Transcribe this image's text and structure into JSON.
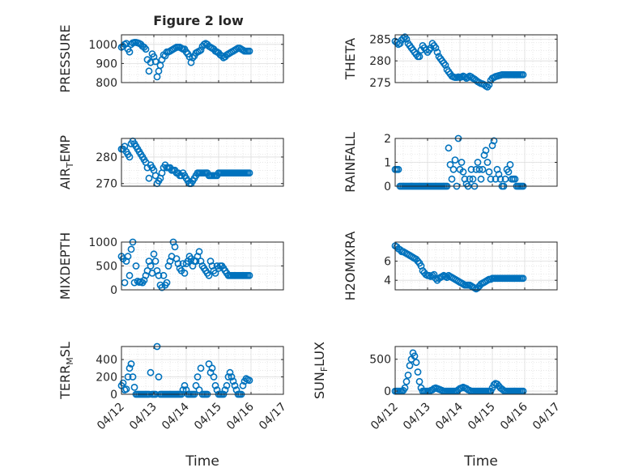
{
  "figure": {
    "title": "Figure 2 low"
  },
  "colors": {
    "marker": "#0072BD",
    "axis": "#262626",
    "grid": "#dedede"
  },
  "x_axis": {
    "label": "Time",
    "ticks": [
      "04/12",
      "04/13",
      "04/14",
      "04/15",
      "04/16",
      "04/17"
    ],
    "range_days": [
      0,
      5
    ]
  },
  "chart_data": [
    {
      "id": "pressure",
      "type": "scatter",
      "title": "Figure 2 low",
      "ylabel": "PRESSURE",
      "ylim": [
        800,
        1050
      ],
      "yticks": [
        800,
        900,
        1000
      ],
      "grid": true,
      "marker": "open-circle",
      "x_unit": "days since 04/12",
      "x": [
        0.0,
        0.05,
        0.1,
        0.15,
        0.2,
        0.25,
        0.3,
        0.35,
        0.4,
        0.45,
        0.5,
        0.55,
        0.6,
        0.65,
        0.7,
        0.75,
        0.8,
        0.85,
        0.9,
        0.95,
        1.0,
        1.05,
        1.1,
        1.15,
        1.2,
        1.25,
        1.3,
        1.35,
        1.4,
        1.45,
        1.5,
        1.55,
        1.6,
        1.65,
        1.7,
        1.75,
        1.8,
        1.85,
        1.9,
        1.95,
        2.0,
        2.05,
        2.1,
        2.15,
        2.2,
        2.25,
        2.3,
        2.35,
        2.4,
        2.45,
        2.5,
        2.55,
        2.6,
        2.65,
        2.7,
        2.75,
        2.8,
        2.85,
        2.9,
        2.95,
        3.0,
        3.05,
        3.1,
        3.15,
        3.2,
        3.25,
        3.3,
        3.35,
        3.4,
        3.45,
        3.5,
        3.55,
        3.6,
        3.65,
        3.7,
        3.75,
        3.8,
        3.85,
        3.9,
        3.95
      ],
      "y": [
        985,
        990,
        1000,
        1005,
        975,
        960,
        1000,
        1008,
        1010,
        1010,
        1008,
        1005,
        1000,
        990,
        985,
        975,
        920,
        860,
        905,
        950,
        935,
        910,
        830,
        860,
        890,
        920,
        945,
        940,
        960,
        960,
        965,
        970,
        975,
        980,
        985,
        985,
        985,
        980,
        975,
        975,
        960,
        950,
        935,
        905,
        930,
        940,
        955,
        960,
        965,
        970,
        990,
        1000,
        1005,
        1000,
        990,
        985,
        980,
        975,
        965,
        960,
        955,
        945,
        940,
        930,
        935,
        945,
        950,
        955,
        960,
        965,
        970,
        975,
        980,
        980,
        975,
        970,
        965,
        965,
        965,
        965
      ]
    },
    {
      "id": "theta",
      "type": "scatter",
      "ylabel": "THETA",
      "ylim": [
        275,
        286
      ],
      "yticks": [
        275,
        280,
        285
      ],
      "grid": true,
      "marker": "open-circle",
      "x_unit": "days since 04/12",
      "x": [
        0.0,
        0.05,
        0.1,
        0.15,
        0.2,
        0.25,
        0.3,
        0.35,
        0.4,
        0.45,
        0.5,
        0.55,
        0.6,
        0.65,
        0.7,
        0.75,
        0.8,
        0.85,
        0.9,
        0.95,
        1.0,
        1.05,
        1.1,
        1.15,
        1.2,
        1.25,
        1.3,
        1.35,
        1.4,
        1.45,
        1.5,
        1.55,
        1.6,
        1.65,
        1.7,
        1.75,
        1.8,
        1.85,
        1.9,
        1.95,
        2.0,
        2.05,
        2.1,
        2.15,
        2.2,
        2.25,
        2.3,
        2.35,
        2.4,
        2.45,
        2.5,
        2.55,
        2.6,
        2.65,
        2.7,
        2.75,
        2.8,
        2.85,
        2.9,
        2.95,
        3.0,
        3.05,
        3.1,
        3.15,
        3.2,
        3.25,
        3.3,
        3.35,
        3.4,
        3.45,
        3.5,
        3.55,
        3.6,
        3.65,
        3.7,
        3.75,
        3.8,
        3.85,
        3.9,
        3.95
      ],
      "y": [
        284.5,
        284.2,
        283.8,
        284.0,
        284.8,
        285.2,
        285.5,
        285.0,
        284.0,
        283.5,
        283.0,
        282.5,
        282.0,
        281.5,
        281.0,
        281.0,
        282.5,
        283.5,
        283.0,
        282.5,
        282.0,
        282.5,
        283.0,
        284.0,
        283.5,
        283.0,
        282.0,
        281.0,
        280.5,
        280.0,
        279.5,
        279.0,
        278.0,
        277.5,
        277.0,
        276.5,
        276.3,
        276.2,
        276.2,
        276.3,
        276.2,
        276.3,
        276.5,
        276.3,
        276.0,
        276.2,
        276.5,
        276.3,
        276.0,
        275.8,
        275.5,
        275.2,
        275.0,
        274.8,
        274.7,
        274.5,
        274.2,
        274.0,
        274.5,
        275.5,
        276.0,
        276.2,
        276.4,
        276.5,
        276.6,
        276.7,
        276.8,
        276.8,
        276.8,
        276.8,
        276.8,
        276.8,
        276.8,
        276.8,
        276.8,
        276.8,
        276.8,
        276.8,
        276.8,
        276.8
      ]
    },
    {
      "id": "air-temp",
      "type": "scatter",
      "ylabel": "AIR_TEMP",
      "ylim": [
        269,
        287
      ],
      "yticks": [
        270,
        280
      ],
      "grid": true,
      "marker": "open-circle",
      "x_unit": "days since 04/12",
      "x": [
        0.0,
        0.05,
        0.1,
        0.15,
        0.2,
        0.25,
        0.3,
        0.35,
        0.4,
        0.45,
        0.5,
        0.55,
        0.6,
        0.65,
        0.7,
        0.75,
        0.8,
        0.85,
        0.9,
        0.95,
        1.0,
        1.05,
        1.1,
        1.15,
        1.2,
        1.25,
        1.3,
        1.35,
        1.4,
        1.45,
        1.5,
        1.55,
        1.6,
        1.65,
        1.7,
        1.75,
        1.8,
        1.85,
        1.9,
        1.95,
        2.0,
        2.05,
        2.1,
        2.15,
        2.2,
        2.25,
        2.3,
        2.35,
        2.4,
        2.45,
        2.5,
        2.55,
        2.6,
        2.65,
        2.7,
        2.75,
        2.8,
        2.85,
        2.9,
        2.95,
        3.0,
        3.05,
        3.1,
        3.15,
        3.2,
        3.25,
        3.3,
        3.35,
        3.4,
        3.45,
        3.5,
        3.55,
        3.6,
        3.65,
        3.7,
        3.75,
        3.8,
        3.85,
        3.9,
        3.95
      ],
      "y": [
        283,
        283,
        284,
        282,
        281,
        280,
        285,
        286,
        285,
        284,
        283,
        282,
        281,
        280,
        279,
        278,
        276,
        272,
        277,
        276,
        275,
        273,
        270,
        271,
        272,
        274,
        276,
        277,
        276,
        276,
        276,
        275,
        275,
        275,
        274,
        274,
        273,
        273,
        274,
        273,
        272,
        271,
        270,
        270,
        271,
        272,
        273,
        274,
        274,
        274,
        274,
        274,
        274,
        274,
        273,
        273,
        273,
        273,
        273,
        273,
        274,
        274,
        274,
        274,
        274,
        274,
        274,
        274,
        274,
        274,
        274,
        274,
        274,
        274,
        274,
        274,
        274,
        274,
        274,
        274
      ]
    },
    {
      "id": "rainfall",
      "type": "scatter",
      "ylabel": "RAINFALL",
      "ylim": [
        0,
        2
      ],
      "yticks": [
        0,
        1,
        2
      ],
      "grid": true,
      "marker": "open-circle",
      "x_unit": "days since 04/12",
      "x": [
        0.0,
        0.05,
        0.1,
        0.15,
        0.2,
        0.25,
        0.3,
        0.35,
        0.4,
        0.45,
        0.5,
        0.55,
        0.6,
        0.65,
        0.7,
        0.75,
        0.8,
        0.85,
        0.9,
        0.95,
        1.0,
        1.05,
        1.1,
        1.15,
        1.2,
        1.25,
        1.3,
        1.35,
        1.4,
        1.45,
        1.5,
        1.55,
        1.6,
        1.65,
        1.7,
        1.75,
        1.8,
        1.85,
        1.9,
        1.95,
        2.0,
        2.05,
        2.1,
        2.15,
        2.2,
        2.25,
        2.3,
        2.35,
        2.4,
        2.45,
        2.5,
        2.55,
        2.6,
        2.65,
        2.7,
        2.75,
        2.8,
        2.85,
        2.9,
        2.95,
        3.0,
        3.05,
        3.1,
        3.15,
        3.2,
        3.25,
        3.3,
        3.35,
        3.4,
        3.45,
        3.5,
        3.55,
        3.6,
        3.65,
        3.7,
        3.75,
        3.8,
        3.85,
        3.9,
        3.95
      ],
      "y": [
        0.7,
        0.7,
        0.7,
        0,
        0,
        0,
        0,
        0,
        0,
        0,
        0,
        0,
        0,
        0,
        0,
        0,
        0,
        0,
        0,
        0,
        0,
        0,
        0,
        0,
        0,
        0,
        0,
        0,
        0,
        0,
        0,
        0,
        0,
        1.6,
        0.9,
        0.3,
        0.7,
        1.1,
        0,
        2.0,
        0.7,
        1.0,
        0.6,
        0.3,
        0.1,
        0,
        0.3,
        0.7,
        0.3,
        0,
        0.7,
        1.0,
        0.7,
        0.3,
        0.7,
        1.3,
        1.5,
        1.0,
        0.6,
        0.3,
        1.7,
        1.9,
        0.3,
        0.7,
        0.5,
        0.3,
        0,
        0,
        0.3,
        0.7,
        0.6,
        0.9,
        0.3,
        0.3,
        0.3,
        0,
        0,
        0,
        0,
        0
      ]
    },
    {
      "id": "mixdepth",
      "type": "scatter",
      "ylabel": "MIXDEPTH",
      "ylim": [
        0,
        1000
      ],
      "yticks": [
        0,
        500,
        1000
      ],
      "grid": true,
      "marker": "open-circle",
      "x_unit": "days since 04/12",
      "x": [
        0.0,
        0.05,
        0.1,
        0.15,
        0.2,
        0.25,
        0.3,
        0.35,
        0.4,
        0.45,
        0.5,
        0.55,
        0.6,
        0.65,
        0.7,
        0.75,
        0.8,
        0.85,
        0.9,
        0.95,
        1.0,
        1.05,
        1.1,
        1.15,
        1.2,
        1.25,
        1.3,
        1.35,
        1.4,
        1.45,
        1.5,
        1.55,
        1.6,
        1.65,
        1.7,
        1.75,
        1.8,
        1.85,
        1.9,
        1.95,
        2.0,
        2.05,
        2.1,
        2.15,
        2.2,
        2.25,
        2.3,
        2.35,
        2.4,
        2.45,
        2.5,
        2.55,
        2.6,
        2.65,
        2.7,
        2.75,
        2.8,
        2.85,
        2.9,
        2.95,
        3.0,
        3.05,
        3.1,
        3.15,
        3.2,
        3.25,
        3.3,
        3.35,
        3.4,
        3.45,
        3.5,
        3.55,
        3.6,
        3.65,
        3.7,
        3.75,
        3.8,
        3.85,
        3.9,
        3.95
      ],
      "y": [
        700,
        650,
        150,
        600,
        700,
        300,
        850,
        1000,
        150,
        500,
        180,
        160,
        170,
        150,
        200,
        300,
        400,
        600,
        500,
        350,
        750,
        600,
        400,
        300,
        100,
        50,
        300,
        100,
        150,
        500,
        600,
        700,
        1000,
        900,
        650,
        550,
        450,
        400,
        550,
        350,
        550,
        600,
        700,
        650,
        500,
        600,
        600,
        700,
        800,
        600,
        500,
        450,
        400,
        350,
        300,
        600,
        500,
        400,
        350,
        500,
        450,
        500,
        500,
        450,
        400,
        350,
        300,
        300,
        300,
        300,
        300,
        300,
        300,
        300,
        300,
        300,
        300,
        300,
        300,
        300
      ]
    },
    {
      "id": "h2omixra",
      "type": "scatter",
      "ylabel": "H2OMIXRA",
      "ylim": [
        3,
        8
      ],
      "yticks": [
        4,
        6
      ],
      "grid": true,
      "marker": "open-circle",
      "x_unit": "days since 04/12",
      "x": [
        0.0,
        0.05,
        0.1,
        0.15,
        0.2,
        0.25,
        0.3,
        0.35,
        0.4,
        0.45,
        0.5,
        0.55,
        0.6,
        0.65,
        0.7,
        0.75,
        0.8,
        0.85,
        0.9,
        0.95,
        1.0,
        1.05,
        1.1,
        1.15,
        1.2,
        1.25,
        1.3,
        1.35,
        1.4,
        1.45,
        1.5,
        1.55,
        1.6,
        1.65,
        1.7,
        1.75,
        1.8,
        1.85,
        1.9,
        1.95,
        2.0,
        2.05,
        2.1,
        2.15,
        2.2,
        2.25,
        2.3,
        2.35,
        2.4,
        2.45,
        2.5,
        2.55,
        2.6,
        2.65,
        2.7,
        2.75,
        2.8,
        2.85,
        2.9,
        2.95,
        3.0,
        3.05,
        3.1,
        3.15,
        3.2,
        3.25,
        3.3,
        3.35,
        3.4,
        3.45,
        3.5,
        3.55,
        3.6,
        3.65,
        3.7,
        3.75,
        3.8,
        3.85,
        3.9,
        3.95
      ],
      "y": [
        7.6,
        7.5,
        7.3,
        7.2,
        7.0,
        7.0,
        6.9,
        6.8,
        6.7,
        6.6,
        6.5,
        6.4,
        6.3,
        6.2,
        6.0,
        5.8,
        5.5,
        5.0,
        4.8,
        4.6,
        4.5,
        4.5,
        4.4,
        4.5,
        4.6,
        4.2,
        4.0,
        4.2,
        4.3,
        4.4,
        4.5,
        4.4,
        4.3,
        4.5,
        4.4,
        4.3,
        4.2,
        4.1,
        4.0,
        3.9,
        3.8,
        3.7,
        3.6,
        3.5,
        3.5,
        3.5,
        3.5,
        3.4,
        3.3,
        3.2,
        3.1,
        3.2,
        3.4,
        3.6,
        3.7,
        3.8,
        3.9,
        4.0,
        4.1,
        4.1,
        4.2,
        4.2,
        4.2,
        4.2,
        4.2,
        4.2,
        4.2,
        4.2,
        4.2,
        4.2,
        4.2,
        4.2,
        4.2,
        4.2,
        4.2,
        4.2,
        4.2,
        4.2,
        4.2,
        4.2
      ]
    },
    {
      "id": "terr-msl",
      "type": "scatter",
      "ylabel": "TERR_MSL",
      "ylim": [
        0,
        550
      ],
      "yticks": [
        0,
        200,
        400
      ],
      "grid": true,
      "marker": "open-circle",
      "x_unit": "days since 04/12",
      "x": [
        0.0,
        0.05,
        0.1,
        0.15,
        0.2,
        0.25,
        0.3,
        0.35,
        0.4,
        0.45,
        0.5,
        0.55,
        0.6,
        0.65,
        0.7,
        0.75,
        0.8,
        0.85,
        0.9,
        0.95,
        1.0,
        1.05,
        1.1,
        1.15,
        1.2,
        1.25,
        1.3,
        1.35,
        1.4,
        1.45,
        1.5,
        1.55,
        1.6,
        1.65,
        1.7,
        1.75,
        1.8,
        1.85,
        1.9,
        1.95,
        2.0,
        2.05,
        2.1,
        2.15,
        2.2,
        2.25,
        2.3,
        2.35,
        2.4,
        2.45,
        2.5,
        2.55,
        2.6,
        2.65,
        2.7,
        2.75,
        2.8,
        2.85,
        2.9,
        2.95,
        3.0,
        3.05,
        3.1,
        3.15,
        3.2,
        3.25,
        3.3,
        3.35,
        3.4,
        3.45,
        3.5,
        3.55,
        3.6,
        3.65,
        3.7,
        3.75,
        3.8,
        3.85,
        3.9,
        3.95
      ],
      "y": [
        100,
        130,
        50,
        60,
        200,
        300,
        350,
        200,
        80,
        0,
        0,
        0,
        0,
        0,
        0,
        0,
        0,
        0,
        250,
        0,
        0,
        0,
        550,
        200,
        0,
        0,
        0,
        0,
        0,
        0,
        0,
        0,
        0,
        0,
        0,
        0,
        0,
        0,
        50,
        100,
        50,
        0,
        0,
        0,
        0,
        0,
        100,
        200,
        50,
        300,
        0,
        0,
        0,
        0,
        350,
        250,
        300,
        200,
        100,
        50,
        0,
        0,
        0,
        0,
        50,
        100,
        200,
        250,
        200,
        150,
        100,
        50,
        0,
        0,
        0,
        100,
        150,
        180,
        170,
        160
      ]
    },
    {
      "id": "sun-flux",
      "type": "scatter",
      "ylabel": "SUN_FLUX",
      "ylim": [
        -50,
        700
      ],
      "yticks": [
        0,
        500
      ],
      "grid": true,
      "marker": "open-circle",
      "x_unit": "days since 04/12",
      "x": [
        0.0,
        0.05,
        0.1,
        0.15,
        0.2,
        0.25,
        0.3,
        0.35,
        0.4,
        0.45,
        0.5,
        0.55,
        0.6,
        0.65,
        0.7,
        0.75,
        0.8,
        0.85,
        0.9,
        0.95,
        1.0,
        1.05,
        1.1,
        1.15,
        1.2,
        1.25,
        1.3,
        1.35,
        1.4,
        1.45,
        1.5,
        1.55,
        1.6,
        1.65,
        1.7,
        1.75,
        1.8,
        1.85,
        1.9,
        1.95,
        2.0,
        2.05,
        2.1,
        2.15,
        2.2,
        2.25,
        2.3,
        2.35,
        2.4,
        2.45,
        2.5,
        2.55,
        2.6,
        2.65,
        2.7,
        2.75,
        2.8,
        2.85,
        2.9,
        2.95,
        3.0,
        3.05,
        3.1,
        3.15,
        3.2,
        3.25,
        3.3,
        3.35,
        3.4,
        3.45,
        3.5,
        3.55,
        3.6,
        3.65,
        3.7,
        3.75,
        3.8,
        3.85,
        3.9,
        3.95
      ],
      "y": [
        0,
        0,
        0,
        0,
        0,
        10,
        50,
        150,
        250,
        400,
        500,
        600,
        550,
        450,
        300,
        150,
        50,
        0,
        0,
        0,
        0,
        0,
        10,
        20,
        40,
        50,
        40,
        30,
        20,
        10,
        0,
        0,
        0,
        0,
        0,
        0,
        0,
        0,
        0,
        20,
        40,
        50,
        60,
        50,
        40,
        20,
        10,
        0,
        0,
        0,
        0,
        0,
        0,
        0,
        0,
        0,
        0,
        0,
        0,
        0,
        50,
        100,
        120,
        110,
        80,
        50,
        30,
        10,
        0,
        0,
        0,
        0,
        0,
        0,
        0,
        0,
        0,
        0,
        0,
        0
      ]
    }
  ]
}
